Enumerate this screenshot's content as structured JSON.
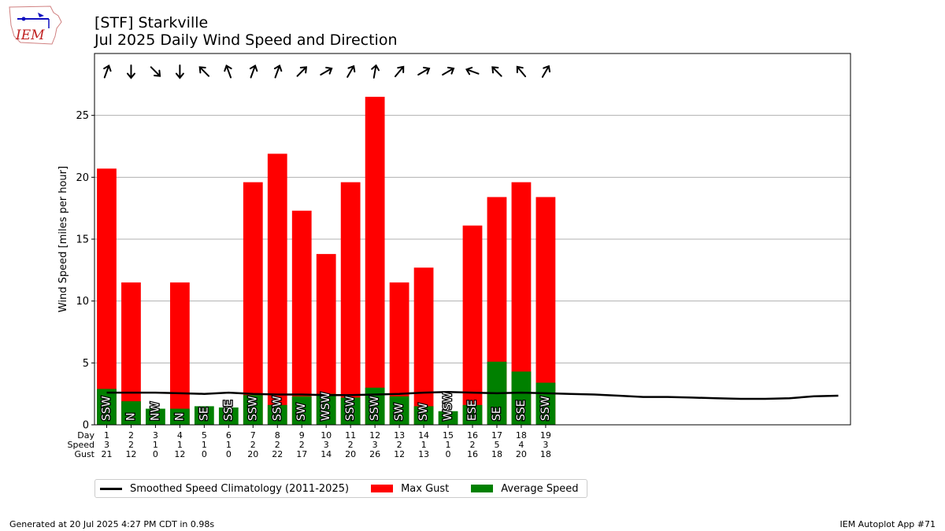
{
  "logo": {
    "text": "IEM"
  },
  "title_line1": "[STF] Starkville",
  "title_line2": "Jul 2025 Daily Wind Speed and Direction",
  "footer": {
    "generated": "Generated at 20 Jul 2025 4:27 PM CDT in 0.98s",
    "app": "IEM Autoplot App #71"
  },
  "colors": {
    "gust": "#ff0000",
    "avg": "#008000",
    "clim": "#000000"
  },
  "chart_data": {
    "type": "bar",
    "ylabel": "Wind Speed [miles per hour]",
    "ylim": [
      0,
      30
    ],
    "yticks": [
      0,
      5,
      10,
      15,
      20,
      25
    ],
    "xlim": [
      0.5,
      31.5
    ],
    "grid": true,
    "row_labels": [
      "Day",
      "Speed",
      "Gust"
    ],
    "days": [
      1,
      2,
      3,
      4,
      5,
      6,
      7,
      8,
      9,
      10,
      11,
      12,
      13,
      14,
      15,
      16,
      17,
      18,
      19
    ],
    "speed_labels": [
      3,
      2,
      1,
      1,
      1,
      1,
      2,
      2,
      2,
      3,
      2,
      3,
      2,
      1,
      1,
      2,
      5,
      4,
      3
    ],
    "gust_labels": [
      21,
      12,
      0,
      12,
      0,
      0,
      20,
      22,
      17,
      14,
      20,
      26,
      12,
      13,
      0,
      16,
      18,
      20,
      18
    ],
    "series": [
      {
        "name": "Max Gust",
        "values": [
          20.7,
          11.5,
          0,
          11.5,
          0,
          0,
          19.6,
          21.9,
          17.3,
          13.8,
          19.6,
          26.5,
          11.5,
          12.7,
          0,
          16.1,
          18.4,
          19.6,
          18.4
        ]
      },
      {
        "name": "Average Speed",
        "values": [
          2.9,
          1.9,
          1.3,
          1.3,
          1.5,
          1.4,
          2.4,
          1.6,
          2.3,
          2.5,
          2.2,
          3.0,
          2.3,
          1.5,
          1.1,
          1.6,
          5.1,
          4.3,
          3.4
        ]
      }
    ],
    "directions": [
      "SSW",
      "N",
      "NW",
      "N",
      "SE",
      "SSE",
      "SSW",
      "SSW",
      "SW",
      "WSW",
      "SSW",
      "SSW",
      "SW",
      "SW",
      "WSW",
      "ESE",
      "SE",
      "SSE",
      "SSW"
    ],
    "arrow_angles": [
      20,
      180,
      135,
      180,
      315,
      340,
      20,
      20,
      45,
      60,
      30,
      10,
      40,
      60,
      60,
      290,
      315,
      320,
      30
    ],
    "climatology": {
      "name": "Smoothed Speed Climatology (2011-2025)",
      "x": [
        1,
        2,
        3,
        4,
        5,
        6,
        7,
        8,
        9,
        10,
        11,
        12,
        13,
        14,
        15,
        16,
        17,
        18,
        19,
        20,
        21,
        22,
        23,
        24,
        25,
        26,
        27,
        28,
        29,
        30,
        31
      ],
      "values": [
        2.6,
        2.6,
        2.6,
        2.55,
        2.5,
        2.6,
        2.5,
        2.45,
        2.45,
        2.4,
        2.4,
        2.45,
        2.5,
        2.6,
        2.65,
        2.6,
        2.55,
        2.6,
        2.55,
        2.5,
        2.45,
        2.35,
        2.25,
        2.25,
        2.2,
        2.15,
        2.1,
        2.1,
        2.15,
        2.3,
        2.35
      ]
    },
    "legend_position": "bottom-left"
  }
}
